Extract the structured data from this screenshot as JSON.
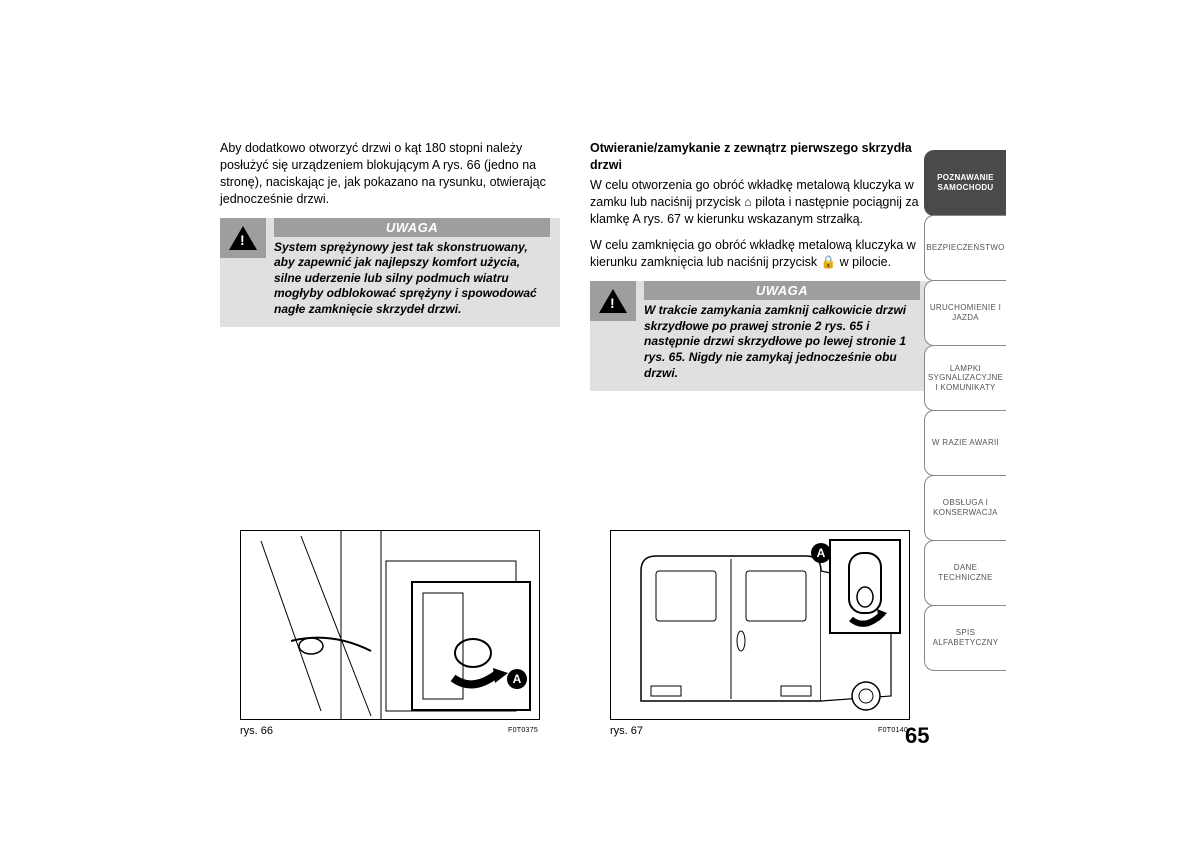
{
  "page_number": "65",
  "left_column": {
    "intro_text": "Aby dodatkowo otworzyć drzwi o kąt 180 stopni należy posłużyć się urządzeniem blokującym A rys. 66 (jedno na stronę), naciskając je, jak pokazano na rysunku, otwierając jednocześnie drzwi.",
    "warning_label": "UWAGA",
    "warning_text": "System sprężynowy jest tak skonstruowany, aby zapewnić jak najlepszy komfort użycia, silne uderzenie lub silny podmuch wiatru mogłyby odblokować sprężyny i spowodować nagłe zamknięcie skrzydeł drzwi."
  },
  "right_column": {
    "heading": "Otwieranie/zamykanie z zewnątrz pierwszego skrzydła drzwi",
    "para1": "W celu otworzenia go obróć wkładkę metalową kluczyka w zamku lub naciśnij przycisk ⌂ pilota i następnie pociągnij za klamkę A rys. 67 w kierunku wskazanym strzałką.",
    "para2": "W celu zamknięcia go obróć wkładkę metalową kluczyka w kierunku zamknięcia lub naciśnij przycisk 🔒 w pilocie.",
    "warning_label": "UWAGA",
    "warning_text": "W trakcie zamykania zamknij całkowicie drzwi skrzydłowe po prawej stronie 2 rys. 65 i następnie drzwi skrzydłowe po lewej stronie 1 rys. 65. Nigdy nie zamykaj jednocześnie obu drzwi."
  },
  "figure_left": {
    "caption": "rys. 66",
    "code": "F0T0375",
    "callout": "A"
  },
  "figure_right": {
    "caption": "rys. 67",
    "code": "F0T0140",
    "callout": "A"
  },
  "tabs": [
    {
      "label": "POZNAWANIE SAMOCHODU",
      "active": true
    },
    {
      "label": "BEZPIECZEŃSTWO",
      "active": false
    },
    {
      "label": "URUCHOMIENIE I JAZDA",
      "active": false
    },
    {
      "label": "LAMPKI SYGNALIZACYJNE I KOMUNIKATY",
      "active": false
    },
    {
      "label": "W RAZIE AWARII",
      "active": false
    },
    {
      "label": "OBSŁUGA I KONSERWACJA",
      "active": false
    },
    {
      "label": "DANE TECHNICZNE",
      "active": false
    },
    {
      "label": "SPIS ALFABETYCZNY",
      "active": false
    }
  ],
  "colors": {
    "warning_bg": "#e0e0e0",
    "warning_bar": "#9e9e9e",
    "tab_active_bg": "#4a4a4a",
    "tab_border": "#888888",
    "text": "#000000",
    "tab_text": "#555555"
  }
}
